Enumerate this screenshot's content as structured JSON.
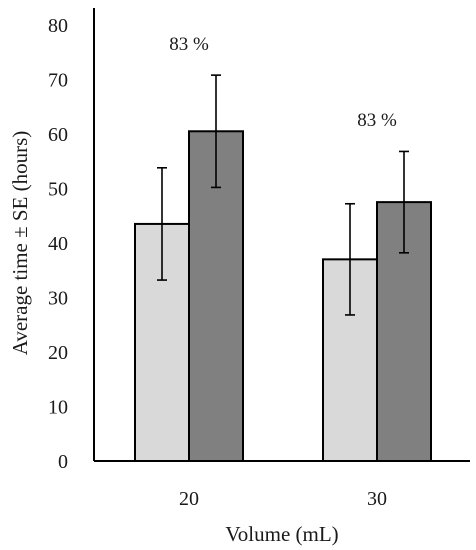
{
  "chart_data": {
    "type": "bar",
    "title": "",
    "xlabel": "Volume (mL)",
    "ylabel": "Average time ± SE (hours)",
    "ylim": [
      0,
      80
    ],
    "yticks": [
      0,
      10,
      20,
      30,
      40,
      50,
      60,
      70,
      80
    ],
    "categories": [
      "20",
      "30"
    ],
    "grid": false,
    "legend": "none",
    "series": [
      {
        "color": "#d9d9d9",
        "values": [
          43.5,
          37.0
        ],
        "error": [
          10.3,
          10.2
        ]
      },
      {
        "color": "#808080",
        "values": [
          60.5,
          47.5
        ],
        "error": [
          10.3,
          9.3
        ]
      }
    ],
    "annotations": [
      {
        "category": "20",
        "text": "83 %"
      },
      {
        "category": "30",
        "text": "83 %"
      }
    ]
  }
}
